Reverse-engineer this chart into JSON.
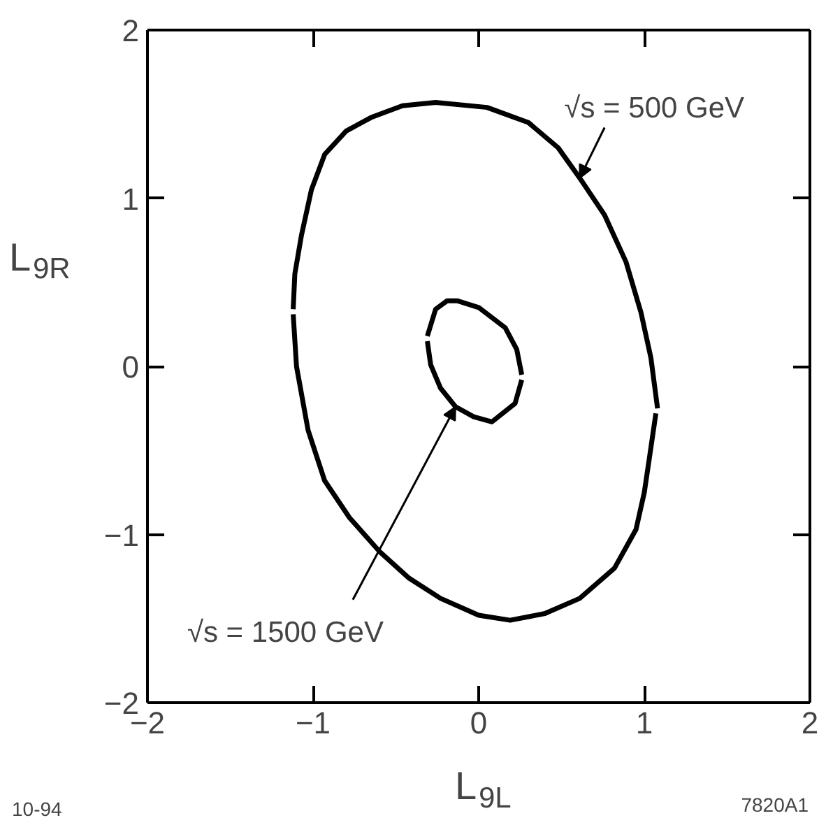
{
  "chart_data": {
    "type": "line",
    "xlabel": "L$_{9L}$",
    "ylabel": "L$_{9R}$",
    "xlim": [
      -2,
      2
    ],
    "ylim": [
      -2,
      2
    ],
    "xticks": [
      {
        "value": -2,
        "label": "−2"
      },
      {
        "value": -1,
        "label": "−1"
      },
      0,
      1,
      2
    ],
    "yticks": [
      {
        "value": -2,
        "label": "−2"
      },
      {
        "value": -1,
        "label": "−1"
      },
      0,
      1,
      2
    ],
    "marker": "none",
    "line_style": "solid",
    "series": [
      {
        "color": "#000000",
        "x": [
          -1.12,
          -1.11,
          -1.07,
          -1.01,
          -0.93,
          -0.8,
          -0.65,
          -0.46,
          -0.26,
          0.05,
          0.3,
          0.48,
          0.61,
          0.76,
          0.89,
          0.98,
          1.04,
          1.08
        ],
        "values": [
          0.34,
          0.55,
          0.78,
          1.05,
          1.26,
          1.4,
          1.48,
          1.55,
          1.57,
          1.54,
          1.45,
          1.3,
          1.12,
          0.9,
          0.62,
          0.32,
          0.05,
          -0.25
        ]
      },
      {
        "color": "#000000",
        "x": [
          -1.12,
          -1.1,
          -1.03,
          -0.93,
          -0.78,
          -0.6,
          -0.42,
          -0.23,
          0.0,
          0.19,
          0.4,
          0.61,
          0.82,
          0.95,
          1.0,
          1.03,
          1.07
        ],
        "values": [
          0.31,
          0.0,
          -0.38,
          -0.68,
          -0.9,
          -1.1,
          -1.26,
          -1.38,
          -1.48,
          -1.51,
          -1.47,
          -1.38,
          -1.2,
          -0.97,
          -0.75,
          -0.55,
          -0.28
        ]
      },
      {
        "color": "#000000",
        "x": [
          -0.31,
          -0.26,
          -0.19,
          -0.13,
          0.0,
          0.16,
          0.23,
          0.26
        ],
        "values": [
          0.18,
          0.34,
          0.39,
          0.39,
          0.35,
          0.23,
          0.1,
          -0.05
        ]
      },
      {
        "color": "#000000",
        "x": [
          -0.31,
          -0.29,
          -0.23,
          -0.14,
          -0.03,
          0.08,
          0.22,
          0.26
        ],
        "values": [
          0.15,
          0.01,
          -0.13,
          -0.24,
          -0.3,
          -0.33,
          -0.22,
          -0.08
        ]
      }
    ],
    "annotations": [
      {
        "text": "√s = 500 GeV",
        "x": 0.61,
        "y": 1.12
      },
      {
        "text": "√s = 1500 GeV",
        "x": -0.14,
        "y": -0.24
      },
      "10-94",
      "7820A1"
    ]
  }
}
